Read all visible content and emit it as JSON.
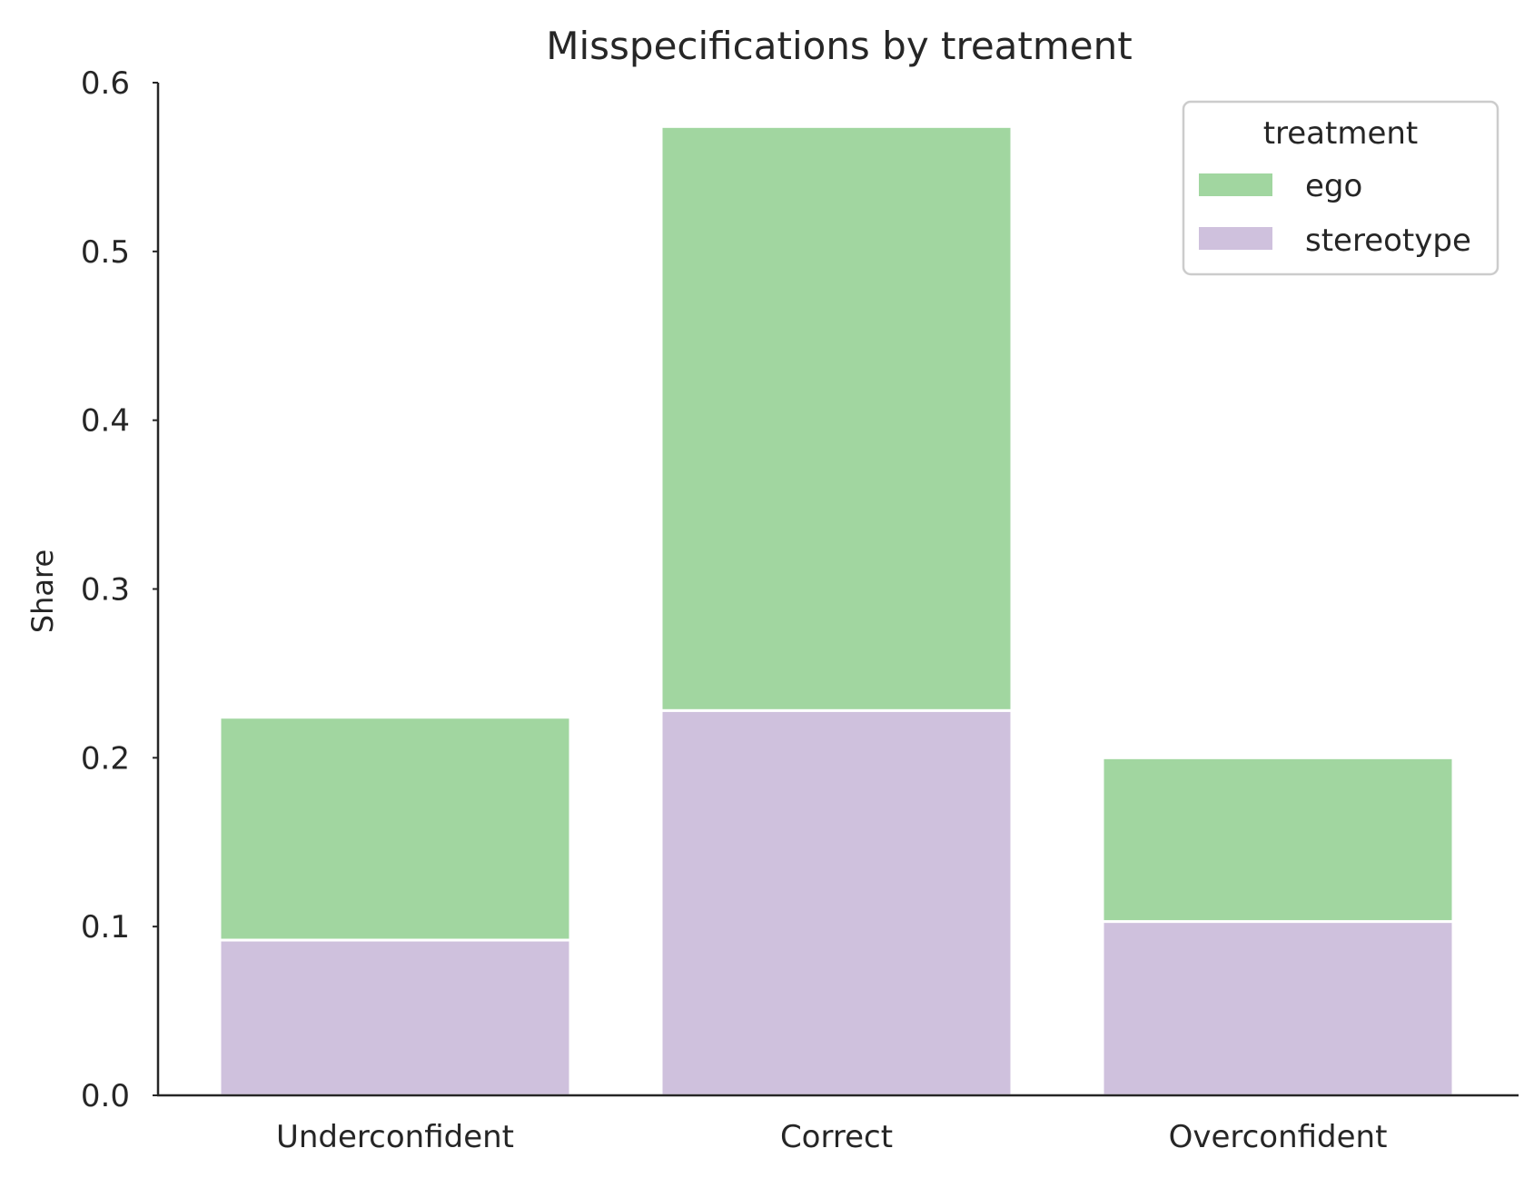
{
  "chart_data": {
    "type": "bar",
    "stacked": true,
    "title": "Misspecifications by treatment",
    "xlabel": "",
    "ylabel": "Share",
    "ylim": [
      0,
      0.6
    ],
    "yticks": [
      "0.0",
      "0.1",
      "0.2",
      "0.3",
      "0.4",
      "0.5",
      "0.6"
    ],
    "categories": [
      "Underconfident",
      "Correct",
      "Overconfident"
    ],
    "series": [
      {
        "name": "stereotype",
        "values": [
          0.092,
          0.228,
          0.103
        ],
        "color": "#cfc1dd"
      },
      {
        "name": "ego",
        "values": [
          0.132,
          0.346,
          0.097
        ],
        "color": "#a1d6a0"
      }
    ],
    "legend": {
      "title": "treatment",
      "placement": "top-right",
      "entries": [
        "ego",
        "stereotype"
      ]
    },
    "grid": false
  }
}
